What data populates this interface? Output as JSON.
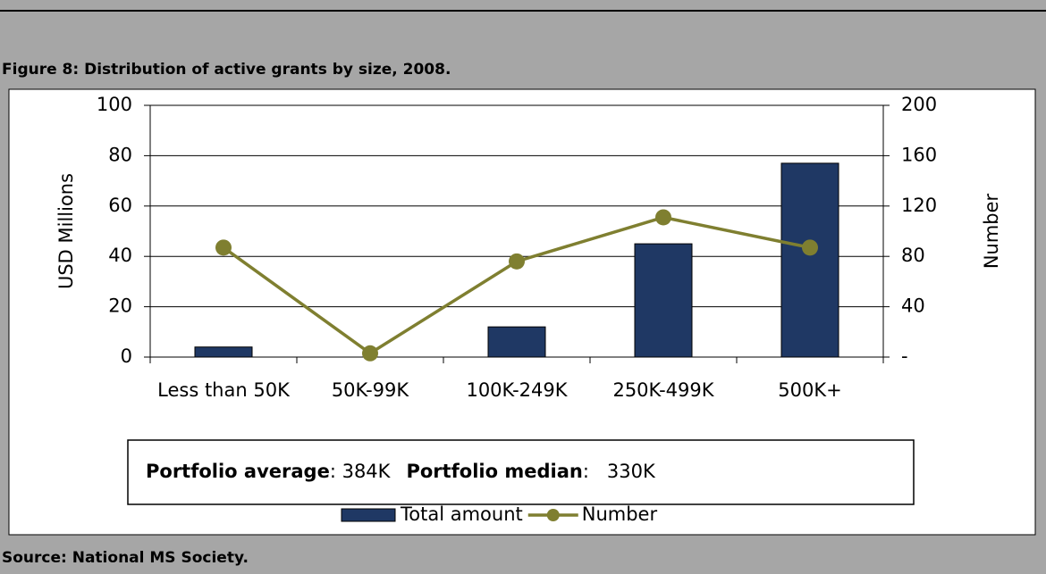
{
  "caption": "Figure 8: Distribution of active grants by size, 2008.",
  "source": "Source: National MS Society.",
  "chart_data": {
    "type": "bar_line",
    "categories": [
      "Less than 50K",
      "50K-99K",
      "100K-249K",
      "250K-499K",
      "500K+"
    ],
    "series": [
      {
        "name": "Total amount",
        "type": "bar",
        "color": "#1f3864",
        "values": [
          4,
          0,
          12,
          45,
          77
        ]
      },
      {
        "name": "Number",
        "type": "line",
        "axis": "y2",
        "color": "#7f7f30",
        "values": [
          87,
          3,
          76,
          111,
          87
        ]
      }
    ],
    "y_label": "USD Millions",
    "y2_label": "Number",
    "ylim": [
      0,
      100
    ],
    "yticks": [
      0,
      20,
      40,
      60,
      80,
      100
    ],
    "y2lim": [
      0,
      200
    ],
    "y2ticks": [
      {
        "value": 0,
        "label": "-"
      },
      40,
      80,
      120,
      160,
      200
    ],
    "grid": true,
    "annotation": {
      "average_label": "Portfolio average",
      "average_value": ": 384K",
      "median_label": "Portfolio median",
      "median_value": ":   330K"
    }
  }
}
